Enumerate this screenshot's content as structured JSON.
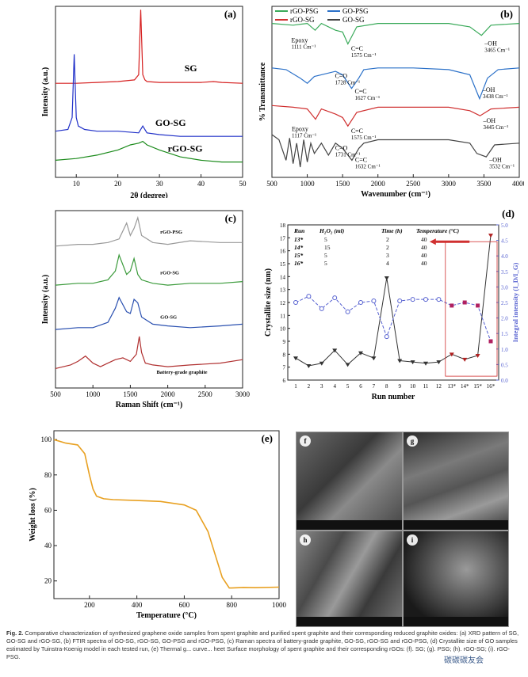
{
  "chart_data": [
    {
      "panel": "(a)",
      "type": "line",
      "xlabel": "2θ (degree)",
      "ylabel": "Intensity (a.u.)",
      "xlim": [
        5,
        50
      ],
      "xticks": [
        10,
        20,
        30,
        40,
        50
      ],
      "series": [
        {
          "name": "SG",
          "color": "#d62020",
          "x": [
            5,
            10,
            15,
            20,
            24,
            25,
            25.5,
            26,
            26.5,
            27,
            30,
            35,
            40,
            43,
            45,
            50
          ],
          "y": [
            0.55,
            0.55,
            0.555,
            0.56,
            0.57,
            0.6,
            0.98,
            0.6,
            0.57,
            0.56,
            0.555,
            0.555,
            0.555,
            0.56,
            0.555,
            0.55
          ]
        },
        {
          "name": "GO-SG",
          "color": "#2030c8",
          "x": [
            5,
            8,
            9,
            9.5,
            10,
            10.5,
            12,
            15,
            20,
            25,
            26,
            27,
            30,
            35,
            40,
            45,
            50
          ],
          "y": [
            0.27,
            0.28,
            0.35,
            0.72,
            0.35,
            0.3,
            0.28,
            0.27,
            0.27,
            0.26,
            0.3,
            0.26,
            0.25,
            0.24,
            0.24,
            0.24,
            0.24
          ]
        },
        {
          "name": "rGO-SG",
          "color": "#1a8a1a",
          "x": [
            5,
            10,
            15,
            20,
            23,
            25,
            26,
            27,
            30,
            35,
            40,
            45,
            50
          ],
          "y": [
            0.1,
            0.11,
            0.13,
            0.16,
            0.19,
            0.2,
            0.21,
            0.19,
            0.16,
            0.12,
            0.1,
            0.09,
            0.09
          ]
        }
      ]
    },
    {
      "panel": "(b)",
      "type": "line",
      "xlabel": "Wavenumber (cm⁻¹)",
      "ylabel": "% Transmittance",
      "xlim": [
        500,
        4000
      ],
      "xticks": [
        500,
        1000,
        1500,
        2000,
        2500,
        3000,
        3500,
        4000
      ],
      "legend": [
        "rGO-PSG",
        "GO-PSG",
        "rGO-SG",
        "GO-SG"
      ],
      "series": [
        {
          "name": "rGO-PSG",
          "color": "#3aaa5a",
          "x": [
            500,
            800,
            1000,
            1111,
            1200,
            1400,
            1500,
            1575,
            1700,
            2000,
            2500,
            3000,
            3300,
            3465,
            3600,
            4000
          ],
          "y": [
            0.9,
            0.89,
            0.9,
            0.86,
            0.9,
            0.86,
            0.85,
            0.78,
            0.88,
            0.9,
            0.9,
            0.9,
            0.88,
            0.83,
            0.89,
            0.9
          ]
        },
        {
          "name": "GO-PSG",
          "color": "#2a70c8",
          "x": [
            500,
            700,
            900,
            1000,
            1100,
            1200,
            1400,
            1500,
            1627,
            1728,
            1800,
            2000,
            2500,
            3000,
            3300,
            3438,
            3550,
            3700,
            4000
          ],
          "y": [
            0.64,
            0.63,
            0.58,
            0.55,
            0.59,
            0.6,
            0.62,
            0.6,
            0.52,
            0.58,
            0.63,
            0.64,
            0.64,
            0.63,
            0.6,
            0.46,
            0.58,
            0.63,
            0.64
          ]
        },
        {
          "name": "rGO-SG",
          "color": "#d03030",
          "x": [
            500,
            800,
            1000,
            1117,
            1200,
            1400,
            1500,
            1575,
            1700,
            2000,
            2500,
            3000,
            3300,
            3445,
            3600,
            4000
          ],
          "y": [
            0.42,
            0.41,
            0.4,
            0.34,
            0.4,
            0.37,
            0.35,
            0.3,
            0.38,
            0.41,
            0.41,
            0.41,
            0.39,
            0.36,
            0.4,
            0.41
          ]
        },
        {
          "name": "GO-SG",
          "color": "#444444",
          "x": [
            500,
            600,
            700,
            750,
            800,
            850,
            900,
            950,
            1000,
            1050,
            1100,
            1200,
            1300,
            1400,
            1500,
            1632,
            1731,
            1800,
            2000,
            2500,
            3000,
            3300,
            3400,
            3532,
            3650,
            4000
          ],
          "y": [
            0.25,
            0.22,
            0.1,
            0.23,
            0.08,
            0.2,
            0.06,
            0.22,
            0.09,
            0.2,
            0.14,
            0.2,
            0.13,
            0.2,
            0.17,
            0.1,
            0.17,
            0.2,
            0.22,
            0.22,
            0.22,
            0.2,
            0.14,
            0.12,
            0.19,
            0.2
          ]
        }
      ],
      "annotations": [
        {
          "text": "Epoxy",
          "sub": "1111 Cm⁻¹"
        },
        {
          "text": "C=C",
          "sub": "1575 Cm⁻¹"
        },
        {
          "text": "–OH",
          "sub": "3465 Cm⁻¹"
        },
        {
          "text": "C=O",
          "sub": "1728 Cm⁻¹"
        },
        {
          "text": "C=C",
          "sub": "1627 Cm⁻¹"
        },
        {
          "text": "–OH",
          "sub": "3438 Cm⁻¹"
        },
        {
          "text": "Epoxy",
          "sub": "1117 Cm⁻¹"
        },
        {
          "text": "C=C",
          "sub": "1575 Cm⁻¹"
        },
        {
          "text": "–OH",
          "sub": "3445 Cm⁻¹"
        },
        {
          "text": "C=O",
          "sub": "1731 Cm⁻¹"
        },
        {
          "text": "C=C",
          "sub": "1632 Cm⁻¹"
        },
        {
          "text": "–OH",
          "sub": "3532 Cm⁻¹"
        }
      ]
    },
    {
      "panel": "(c)",
      "type": "line",
      "xlabel": "Raman Shift (cm⁻¹)",
      "ylabel": "Intensity (a.u.)",
      "xlim": [
        500,
        3000
      ],
      "xticks": [
        500,
        1000,
        1500,
        2000,
        2500,
        3000
      ],
      "series": [
        {
          "name": "rGO-PSG",
          "color": "#999999",
          "x": [
            500,
            800,
            1000,
            1200,
            1350,
            1450,
            1500,
            1550,
            1600,
            1650,
            1800,
            2000,
            2300,
            2700,
            3000
          ],
          "y": [
            0.8,
            0.81,
            0.81,
            0.82,
            0.84,
            0.93,
            0.86,
            0.9,
            0.96,
            0.86,
            0.82,
            0.81,
            0.83,
            0.82,
            0.82
          ]
        },
        {
          "name": "rGO-SG",
          "color": "#3a9a3a",
          "x": [
            500,
            800,
            1000,
            1200,
            1300,
            1350,
            1450,
            1500,
            1550,
            1600,
            1650,
            1800,
            2000,
            2300,
            2700,
            3000
          ],
          "y": [
            0.58,
            0.59,
            0.59,
            0.61,
            0.66,
            0.75,
            0.64,
            0.66,
            0.73,
            0.64,
            0.61,
            0.59,
            0.58,
            0.59,
            0.59,
            0.6
          ]
        },
        {
          "name": "GO-SG",
          "color": "#2a50b0",
          "x": [
            500,
            800,
            1000,
            1200,
            1300,
            1350,
            1450,
            1500,
            1550,
            1600,
            1650,
            1800,
            2000,
            2300,
            2700,
            3000
          ],
          "y": [
            0.33,
            0.34,
            0.34,
            0.37,
            0.45,
            0.51,
            0.43,
            0.42,
            0.5,
            0.48,
            0.4,
            0.36,
            0.35,
            0.34,
            0.35,
            0.36
          ]
        },
        {
          "name": "Battery-grade graphite",
          "color": "#b03030",
          "x": [
            500,
            700,
            800,
            900,
            1000,
            1100,
            1200,
            1300,
            1400,
            1500,
            1580,
            1620,
            1650,
            1700,
            1800,
            2000,
            2300,
            2700,
            3000
          ],
          "y": [
            0.11,
            0.13,
            0.15,
            0.18,
            0.14,
            0.12,
            0.14,
            0.16,
            0.17,
            0.15,
            0.19,
            0.29,
            0.2,
            0.14,
            0.13,
            0.12,
            0.13,
            0.14,
            0.16
          ]
        }
      ]
    },
    {
      "panel": "(d)",
      "type": "line",
      "xlabel": "Run number",
      "ylabel": "Crystallite size (nm)",
      "ylabel_right": "Integral intensity (I_D/I_G)",
      "ylim": [
        6,
        18
      ],
      "ylim_right": [
        0,
        5
      ],
      "categories": [
        "1",
        "2",
        "3",
        "4",
        "5",
        "6",
        "7",
        "8",
        "9",
        "10",
        "11",
        "12",
        "13*",
        "14*",
        "15*",
        "16*"
      ],
      "series": [
        {
          "name": "Crystallite size",
          "color": "#333333",
          "axis": "left",
          "values": [
            7.7,
            7.1,
            7.3,
            8.3,
            7.2,
            8.1,
            7.7,
            13.9,
            7.5,
            7.4,
            7.3,
            7.4,
            8.0,
            7.6,
            7.9,
            17.2
          ]
        },
        {
          "name": "Integral intensity",
          "color": "#5560d0",
          "axis": "right",
          "values": [
            2.5,
            2.7,
            2.3,
            2.65,
            2.2,
            2.5,
            2.55,
            1.4,
            2.55,
            2.6,
            2.6,
            2.6,
            2.4,
            2.5,
            2.4,
            1.25
          ]
        }
      ],
      "table": {
        "headers": [
          "Run",
          "H₂O₂ (ml)",
          "Time (h)",
          "Temperature (°C)"
        ],
        "rows": [
          [
            "13*",
            "5",
            "2",
            "40"
          ],
          [
            "14*",
            "15",
            "2",
            "40"
          ],
          [
            "15*",
            "5",
            "3",
            "40"
          ],
          [
            "16*",
            "5",
            "4",
            "40"
          ]
        ]
      }
    },
    {
      "panel": "(e)",
      "type": "line",
      "xlabel": "Temperature (°C)",
      "ylabel": "Weight loss (%)",
      "xlim": [
        50,
        1000
      ],
      "ylim": [
        10,
        105
      ],
      "xticks": [
        200,
        400,
        600,
        800,
        1000
      ],
      "yticks": [
        20,
        40,
        60,
        80,
        100
      ],
      "series": [
        {
          "name": "",
          "color": "#e8a020",
          "x": [
            50,
            100,
            150,
            180,
            200,
            215,
            230,
            260,
            300,
            400,
            500,
            600,
            650,
            700,
            730,
            760,
            790,
            800,
            850,
            900,
            1000
          ],
          "y": [
            100,
            98,
            97,
            92,
            80,
            72,
            68,
            66.5,
            66,
            65.5,
            65,
            63,
            60,
            48,
            35,
            22,
            16,
            16,
            16.3,
            16.2,
            16.5
          ]
        }
      ]
    }
  ],
  "sem_panels": [
    {
      "label": "f"
    },
    {
      "label": "g"
    },
    {
      "label": "h"
    },
    {
      "label": "i"
    }
  ],
  "caption": {
    "lead": "Fig. 2.",
    "text": "Comparative characterization of synthesized graphene oxide samples from spent graphite and purified spent graphite and their corresponding reduced graphite oxides: (a) XRD pattern of SG, GO-SG and rGO-SG, (b) FTIR spectra of GO-SG, rGO-SG, GO-PSG and rGO-PSG, (c) Raman spectra of battery-grade graphite, GO-SG, rGO-SG and rGO-PSG, (d) Crystallite size of GO samples estimated by Tuinstra-Koenig model in each tested run, (e) Thermal g... curve... heet Surface morphology of spent graphite and their corresponding rGOs: (f). SG; (g). PSG; (h). rGO-SG; (i). rGO-PSG."
  },
  "watermark": "碳碳碳友会"
}
